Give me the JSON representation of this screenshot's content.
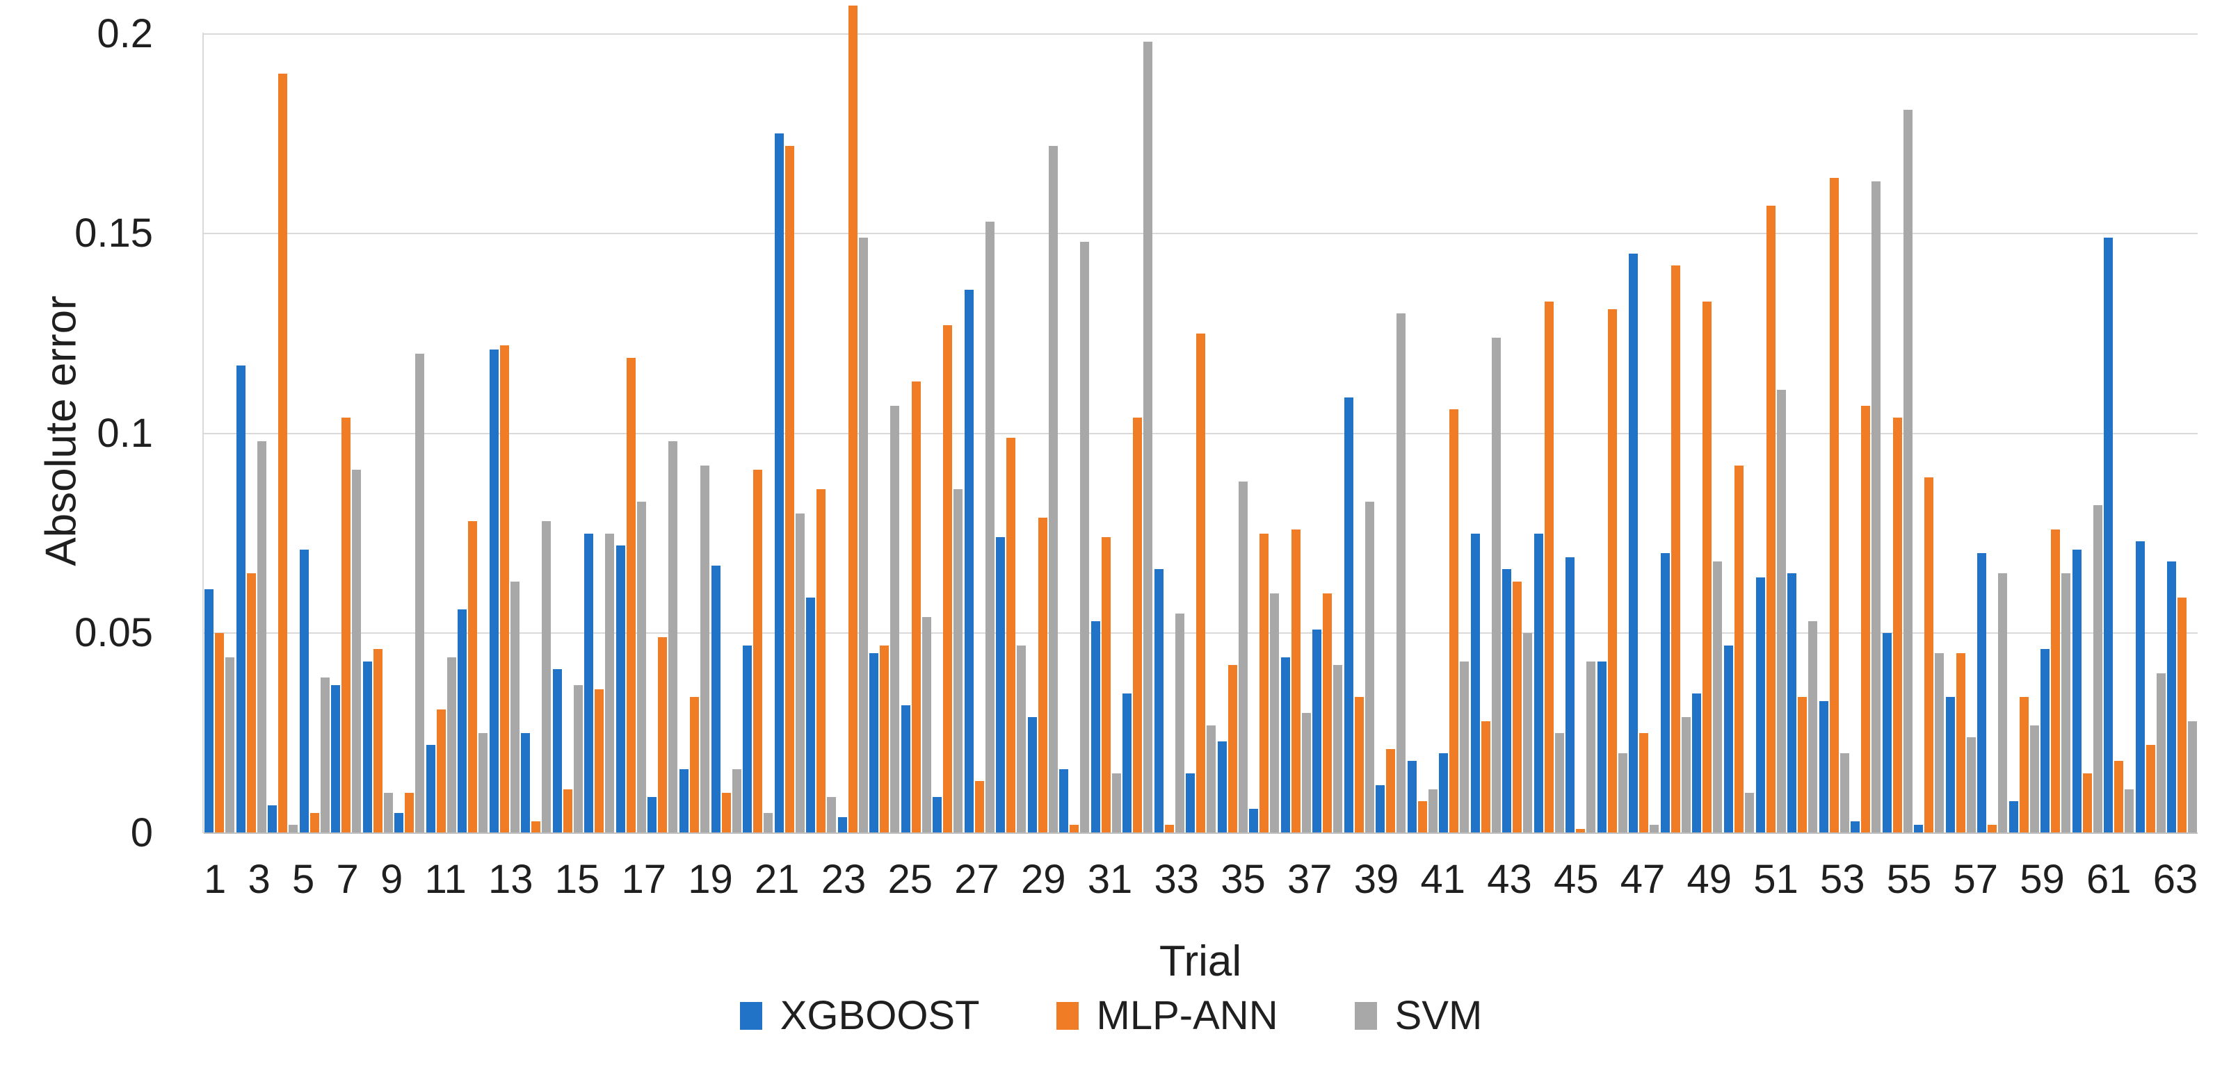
{
  "chart_data": {
    "type": "bar",
    "title": "",
    "xlabel": "Trial",
    "ylabel": "Absolute error",
    "ylim": [
      0,
      0.2
    ],
    "grid": "horizontal",
    "legend_position": "bottom",
    "y_ticks": [
      0,
      0.05,
      0.1,
      0.15,
      0.2
    ],
    "y_tick_labels": [
      "0",
      "0.05",
      "0.1",
      "0.15",
      "0.2"
    ],
    "x": [
      1,
      2,
      3,
      4,
      5,
      6,
      7,
      8,
      9,
      10,
      11,
      12,
      13,
      14,
      15,
      16,
      17,
      18,
      19,
      20,
      21,
      22,
      23,
      24,
      25,
      26,
      27,
      28,
      29,
      30,
      31,
      32,
      33,
      34,
      35,
      36,
      37,
      38,
      39,
      40,
      41,
      42,
      43,
      44,
      45,
      46,
      47,
      48,
      49,
      50,
      51,
      52,
      53,
      54,
      55,
      56,
      57,
      58,
      59,
      60,
      61,
      62,
      63
    ],
    "x_tick_labels": [
      "1",
      "3",
      "5",
      "7",
      "9",
      "11",
      "13",
      "15",
      "17",
      "19",
      "21",
      "23",
      "25",
      "27",
      "29",
      "31",
      "33",
      "35",
      "37",
      "39",
      "41",
      "43",
      "45",
      "47",
      "49",
      "51",
      "53",
      "55",
      "57",
      "59",
      "61",
      "63"
    ],
    "series": [
      {
        "name": "XGBOOST",
        "color": "#2073c6",
        "values": [
          0.061,
          0.117,
          0.007,
          0.071,
          0.037,
          0.043,
          0.005,
          0.022,
          0.056,
          0.121,
          0.025,
          0.041,
          0.075,
          0.072,
          0.009,
          0.016,
          0.067,
          0.047,
          0.175,
          0.059,
          0.004,
          0.045,
          0.032,
          0.009,
          0.136,
          0.074,
          0.029,
          0.016,
          0.053,
          0.035,
          0.066,
          0.015,
          0.023,
          0.006,
          0.044,
          0.051,
          0.109,
          0.012,
          0.018,
          0.02,
          0.075,
          0.066,
          0.075,
          0.069,
          0.043,
          0.145,
          0.07,
          0.035,
          0.047,
          0.064,
          0.065,
          0.033,
          0.003,
          0.05,
          0.002,
          0.034,
          0.07,
          0.008,
          0.046,
          0.071,
          0.149,
          0.073,
          0.068
        ]
      },
      {
        "name": "MLP-ANN",
        "color": "#f07c25",
        "values": [
          0.05,
          0.065,
          0.19,
          0.005,
          0.104,
          0.046,
          0.01,
          0.031,
          0.078,
          0.122,
          0.003,
          0.011,
          0.036,
          0.119,
          0.049,
          0.034,
          0.01,
          0.091,
          0.172,
          0.086,
          0.207,
          0.047,
          0.113,
          0.127,
          0.013,
          0.099,
          0.079,
          0.002,
          0.074,
          0.104,
          0.002,
          0.125,
          0.042,
          0.075,
          0.076,
          0.06,
          0.034,
          0.021,
          0.008,
          0.106,
          0.028,
          0.063,
          0.133,
          0.001,
          0.131,
          0.025,
          0.142,
          0.133,
          0.092,
          0.157,
          0.034,
          0.164,
          0.107,
          0.104,
          0.089,
          0.045,
          0.002,
          0.034,
          0.076,
          0.015,
          0.018,
          0.022,
          0.059
        ]
      },
      {
        "name": "SVM",
        "color": "#a8a8a8",
        "values": [
          0.044,
          0.098,
          0.002,
          0.039,
          0.091,
          0.01,
          0.12,
          0.044,
          0.025,
          0.063,
          0.078,
          0.037,
          0.075,
          0.083,
          0.098,
          0.092,
          0.016,
          0.005,
          0.08,
          0.009,
          0.149,
          0.107,
          0.054,
          0.086,
          0.153,
          0.047,
          0.172,
          0.148,
          0.015,
          0.198,
          0.055,
          0.027,
          0.088,
          0.06,
          0.03,
          0.042,
          0.083,
          0.13,
          0.011,
          0.043,
          0.124,
          0.05,
          0.025,
          0.043,
          0.02,
          0.002,
          0.029,
          0.068,
          0.01,
          0.111,
          0.053,
          0.02,
          0.163,
          0.181,
          0.045,
          0.024,
          0.065,
          0.027,
          0.065,
          0.082,
          0.011,
          0.04,
          0.028
        ]
      }
    ]
  }
}
